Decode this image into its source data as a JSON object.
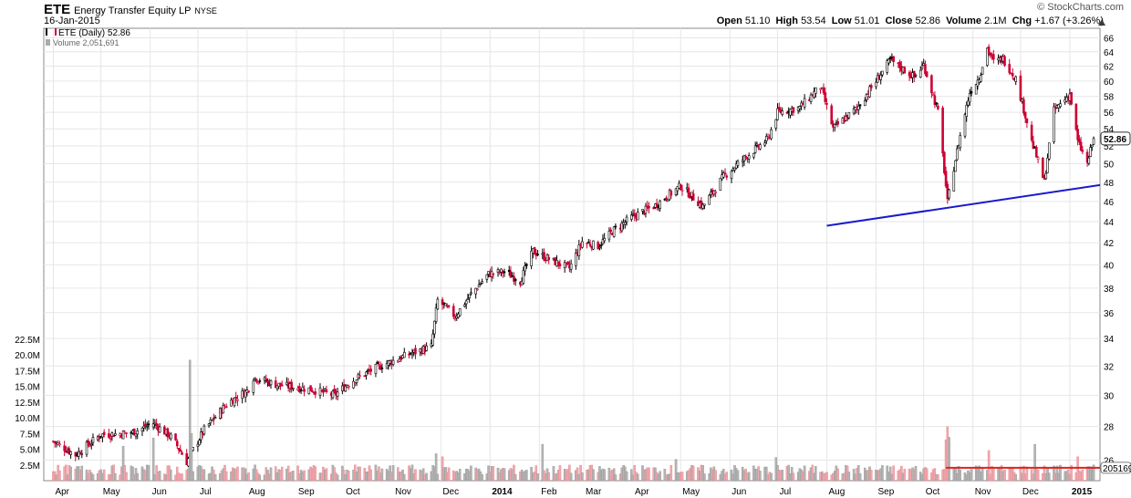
{
  "header": {
    "symbol": "ETE",
    "company": "Energy Transfer Equity LP",
    "exchange": "NYSE",
    "date": "16-Jan-2015",
    "logo": "© StockCharts.com",
    "open_label": "Open",
    "open": "51.10",
    "high_label": "High",
    "high": "53.54",
    "low_label": "Low",
    "low": "51.01",
    "close_label": "Close",
    "close": "52.86",
    "volume_label": "Volume",
    "volume": "2.1M",
    "chg_label": "Chg",
    "chg": "+1.67 (+3.26%)",
    "chg_arrow": "up-triangle-icon"
  },
  "legend": {
    "price": "ETE (Daily) 52.86",
    "volume": "Volume 2,051,691"
  },
  "colors": {
    "up": "#000000",
    "down": "#cc0033",
    "trendline": "#1a1acc",
    "vol_avg": "#dd2222",
    "grid": "#e6e6e6"
  },
  "chart_data": {
    "type": "candlestick",
    "y_scale": "log",
    "ylim": [
      25,
      67
    ],
    "y_ticks": [
      26,
      28,
      30,
      32,
      34,
      36,
      38,
      40,
      42,
      44,
      46,
      48,
      50,
      52,
      54,
      56,
      58,
      60,
      62,
      64,
      66
    ],
    "last_price_label": "52.86",
    "x_labels": [
      "Apr",
      "May",
      "Jun",
      "Jul",
      "Aug",
      "Sep",
      "Oct",
      "Nov",
      "Dec",
      "2014",
      "Feb",
      "Mar",
      "Apr",
      "May",
      "Jun",
      "Jul",
      "Aug",
      "Sep",
      "Oct",
      "Nov",
      "Dec",
      "2015"
    ],
    "x_bold": [
      "2014",
      "2015"
    ],
    "price_path": [
      [
        "2013-04-01",
        27.1
      ],
      [
        "2013-04-15",
        26.3
      ],
      [
        "2013-05-01",
        27.5
      ],
      [
        "2013-05-20",
        27.6
      ],
      [
        "2013-06-03",
        28.2
      ],
      [
        "2013-06-15",
        27.3
      ],
      [
        "2013-06-24",
        25.9
      ],
      [
        "2013-07-05",
        27.8
      ],
      [
        "2013-07-20",
        29.5
      ],
      [
        "2013-08-01",
        30.3
      ],
      [
        "2013-08-05",
        31.2
      ],
      [
        "2013-08-20",
        30.7
      ],
      [
        "2013-09-10",
        30.4
      ],
      [
        "2013-09-25",
        30.0
      ],
      [
        "2013-10-05",
        30.9
      ],
      [
        "2013-10-20",
        31.8
      ],
      [
        "2013-11-10",
        32.8
      ],
      [
        "2013-11-25",
        33.4
      ],
      [
        "2013-11-29",
        37.0
      ],
      [
        "2013-12-10",
        35.7
      ],
      [
        "2013-12-20",
        37.5
      ],
      [
        "2013-12-31",
        39.2
      ],
      [
        "2014-01-10",
        39.4
      ],
      [
        "2014-01-20",
        38.6
      ],
      [
        "2014-01-28",
        41.2
      ],
      [
        "2014-02-10",
        40.3
      ],
      [
        "2014-02-20",
        39.7
      ],
      [
        "2014-02-28",
        42.1
      ],
      [
        "2014-03-10",
        41.7
      ],
      [
        "2014-03-20",
        43.2
      ],
      [
        "2014-04-01",
        44.5
      ],
      [
        "2014-04-15",
        45.6
      ],
      [
        "2014-05-01",
        47.6
      ],
      [
        "2014-05-15",
        45.5
      ],
      [
        "2014-05-28",
        48.6
      ],
      [
        "2014-06-10",
        50.6
      ],
      [
        "2014-06-25",
        52.8
      ],
      [
        "2014-07-01",
        56.0
      ],
      [
        "2014-07-15",
        56.6
      ],
      [
        "2014-07-28",
        59.3
      ],
      [
        "2014-08-05",
        54.0
      ],
      [
        "2014-08-20",
        56.5
      ],
      [
        "2014-09-01",
        60.0
      ],
      [
        "2014-09-10",
        62.8
      ],
      [
        "2014-09-25",
        60.5
      ],
      [
        "2014-10-01",
        62.2
      ],
      [
        "2014-10-10",
        56.0
      ],
      [
        "2014-10-16",
        45.9
      ],
      [
        "2014-10-21",
        50.5
      ],
      [
        "2014-10-30",
        58.5
      ],
      [
        "2014-11-05",
        60.5
      ],
      [
        "2014-11-10",
        64.5
      ],
      [
        "2014-11-14",
        62.6
      ],
      [
        "2014-11-20",
        63.0
      ],
      [
        "2014-11-28",
        60.3
      ],
      [
        "2014-12-08",
        52.5
      ],
      [
        "2014-12-16",
        48.0
      ],
      [
        "2014-12-22",
        56.2
      ],
      [
        "2015-01-01",
        58.3
      ],
      [
        "2015-01-06",
        52.5
      ],
      [
        "2015-01-12",
        50.0
      ],
      [
        "2015-01-16",
        52.86
      ]
    ],
    "volume_unit": "millions",
    "volume_ylim": [
      0,
      22.5
    ],
    "volume_ticks": [
      2.5,
      5.0,
      7.5,
      10.0,
      12.5,
      15.0,
      17.5,
      20.0,
      22.5
    ],
    "volume_tick_labels": [
      "2.5M",
      "5.0M",
      "7.5M",
      "10.0M",
      "12.5M",
      "15.0M",
      "17.5M",
      "20.0M",
      "22.5M"
    ],
    "volume_spikes": [
      [
        "2013-05-15",
        5.5
      ],
      [
        "2013-06-03",
        6.8
      ],
      [
        "2013-06-26",
        19.2
      ],
      [
        "2013-06-27",
        7.5
      ],
      [
        "2013-08-03",
        7.5
      ],
      [
        "2013-11-28",
        4.3
      ],
      [
        "2013-12-02",
        3.8
      ],
      [
        "2014-02-03",
        5.8
      ],
      [
        "2014-04-28",
        3.4
      ],
      [
        "2014-06-30",
        3.7
      ],
      [
        "2014-10-15",
        6.5
      ],
      [
        "2014-10-16",
        8.6
      ],
      [
        "2014-10-17",
        6.9
      ],
      [
        "2014-11-11",
        4.8
      ],
      [
        "2014-12-10",
        5.8
      ],
      [
        "2015-01-06",
        3.8
      ]
    ],
    "volume_baseline": 1.8,
    "volume_avg_label": "2051691",
    "volume_avg_value": 2.05,
    "volume_avg_range": [
      "2014-10-15",
      "2015-01-16"
    ],
    "trendline": [
      [
        "2014-08-01",
        43.6
      ],
      [
        "2015-01-20",
        47.7
      ]
    ]
  }
}
